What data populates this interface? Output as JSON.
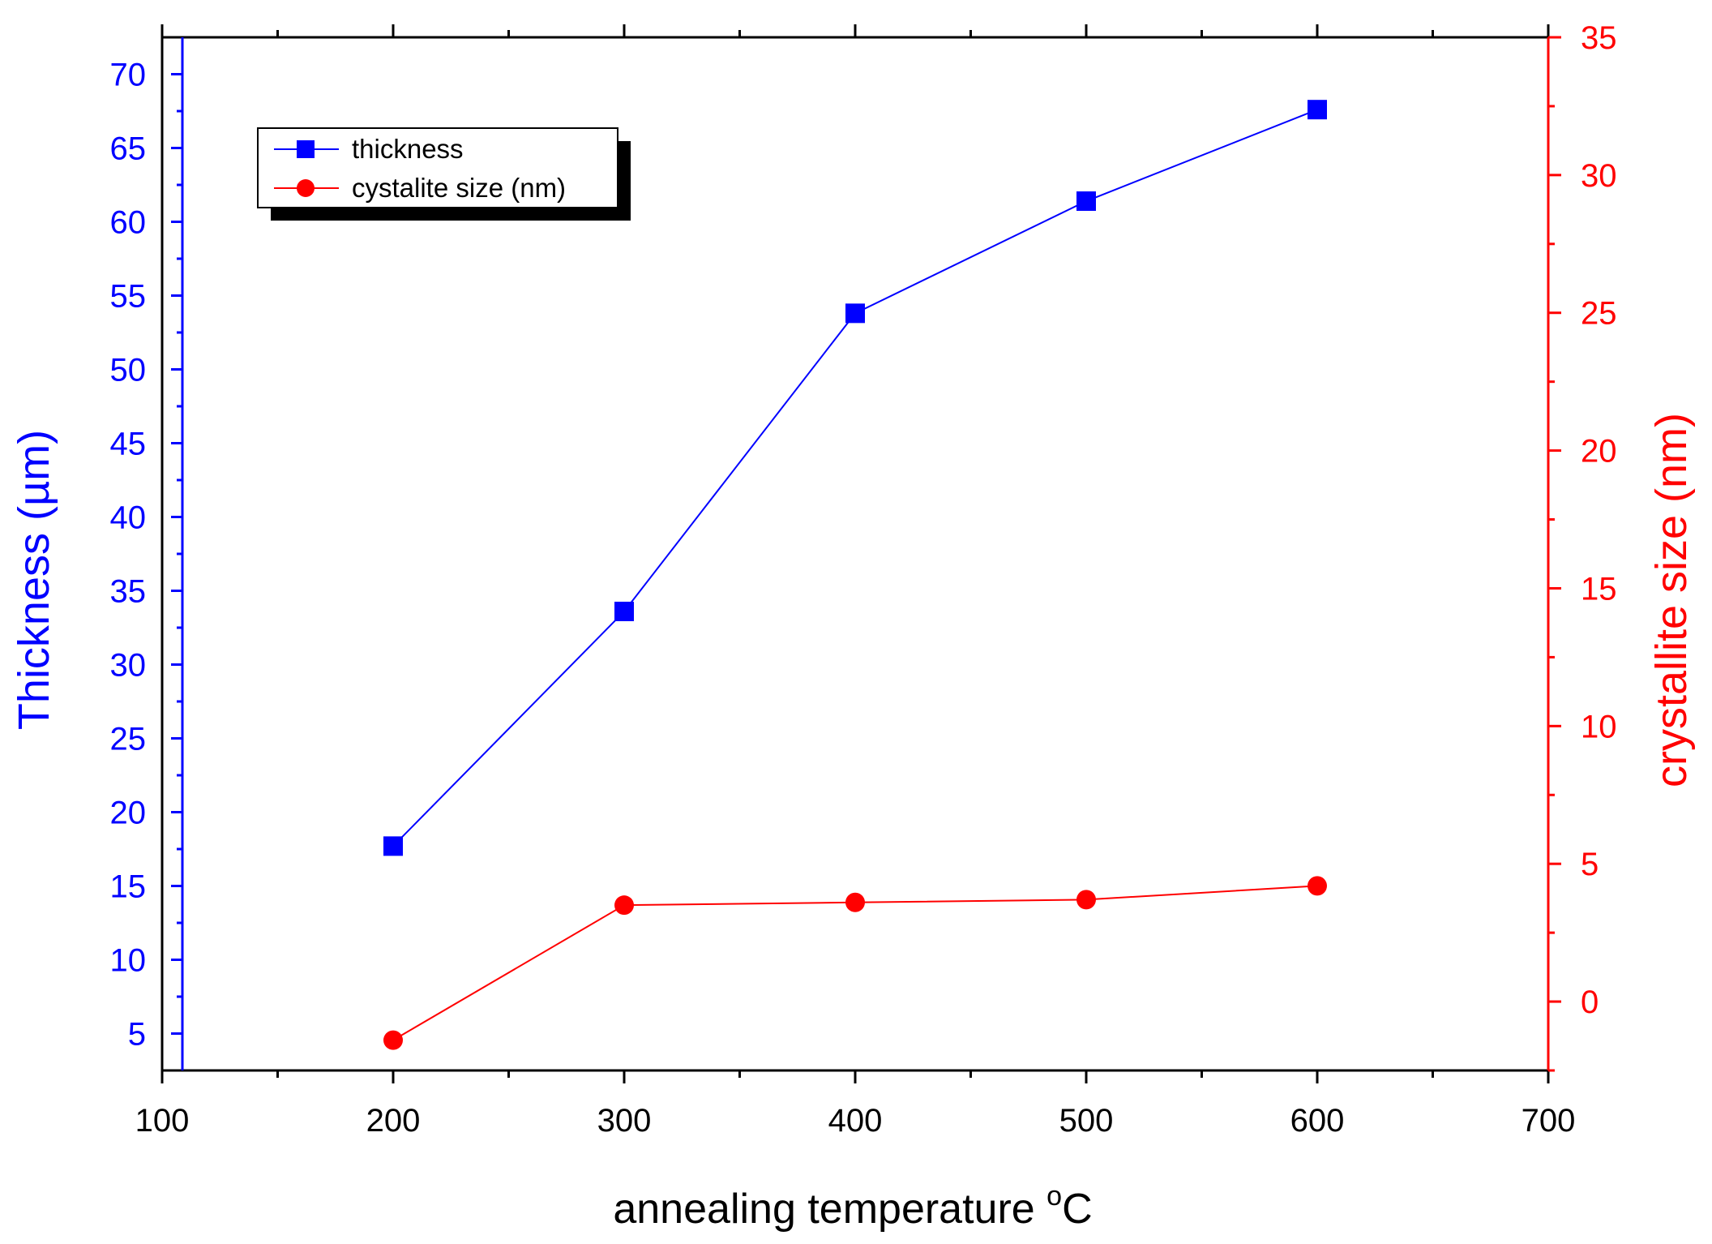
{
  "chart_data": {
    "type": "line",
    "title": "",
    "xlabel_main": "annealing temperature ",
    "xlabel_sup": "o",
    "xlabel_unit": "C",
    "ylabel_left": "Thickness (µm)",
    "ylabel_right": "crystallite size (nm)",
    "xlim": [
      100,
      700
    ],
    "xticks": [
      100,
      200,
      300,
      400,
      500,
      600,
      700
    ],
    "ylim_left": [
      2.5,
      72.5
    ],
    "yticks_left": [
      5,
      10,
      15,
      20,
      25,
      30,
      35,
      40,
      45,
      50,
      55,
      60,
      65,
      70
    ],
    "ylim_right": [
      -2.5,
      35
    ],
    "yticks_right": [
      0,
      5,
      10,
      15,
      20,
      25,
      30,
      35
    ],
    "grid": false,
    "legend_position": "top-left",
    "series": [
      {
        "name": "thickness",
        "axis": "left",
        "marker": "square",
        "color": "#0000ff",
        "x": [
          200,
          300,
          400,
          500,
          600
        ],
        "values": [
          17.7,
          33.6,
          53.8,
          61.4,
          67.6
        ]
      },
      {
        "name": "cystalite size (nm)",
        "axis": "right",
        "marker": "circle",
        "color": "#ff0000",
        "x": [
          200,
          300,
          400,
          500,
          600
        ],
        "values": [
          -1.4,
          3.5,
          3.6,
          3.7,
          4.2
        ]
      }
    ]
  }
}
